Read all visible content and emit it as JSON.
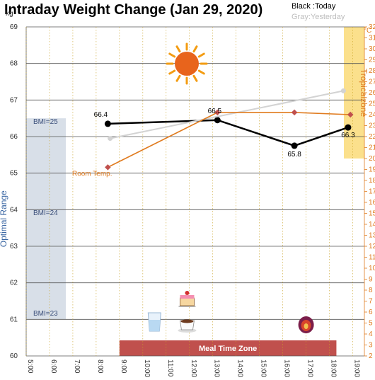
{
  "chart_data": {
    "type": "line",
    "title": "Intraday Weight Change (Jan 29, 2020)",
    "legend": {
      "today": "Black :Today",
      "yesterday": "Gray:Yesterday"
    },
    "y_left": {
      "unit": "kg",
      "range": [
        60,
        69
      ],
      "ticks": [
        "60",
        "61",
        "62",
        "63",
        "64",
        "65",
        "66",
        "67",
        "68",
        "69"
      ]
    },
    "y_right": {
      "unit": "°C",
      "range": [
        2,
        32
      ],
      "ticks": [
        "2",
        "3",
        "4",
        "5",
        "6",
        "7",
        "8",
        "9",
        "10",
        "11",
        "12",
        "13",
        "14",
        "15",
        "16",
        "17",
        "18",
        "19",
        "20",
        "21",
        "22",
        "23",
        "24",
        "25",
        "26",
        "27",
        "28",
        "29",
        "30",
        "31",
        "32"
      ]
    },
    "x": {
      "range": [
        5,
        19.5
      ],
      "tick_values": [
        5,
        6,
        7,
        8,
        9,
        10,
        11,
        12,
        13,
        14,
        15,
        16,
        17,
        18,
        19
      ],
      "tick_labels": [
        "5:00",
        "6:00",
        "7:00",
        "8:00",
        "9:00",
        "10:00",
        "11:00",
        "12:00",
        "13:00",
        "14:00",
        "15:00",
        "16:00",
        "17:00",
        "18:00",
        "19:00"
      ]
    },
    "series": [
      {
        "name": "Today",
        "axis": "left",
        "color": "#000000",
        "x": [
          8.5,
          13.2,
          16.5,
          18.8
        ],
        "y": [
          66.35,
          66.45,
          65.75,
          66.25
        ],
        "labels": [
          "66.4",
          "66.5",
          "65.8",
          "66.3"
        ]
      },
      {
        "name": "Yesterday",
        "axis": "left",
        "color": "#d3d3d3",
        "x": [
          8.6,
          18.6
        ],
        "y": [
          65.95,
          67.25
        ]
      },
      {
        "name": "Room Temp.",
        "axis": "right",
        "color": "#e07b1f",
        "x": [
          8.5,
          13.2,
          16.5,
          18.9
        ],
        "y": [
          19.2,
          24.2,
          24.2,
          24.0
        ]
      }
    ],
    "optimal_range": {
      "label": "Optimal Range",
      "y_range": [
        61,
        66.5
      ],
      "color": "#d8dfe8"
    },
    "bmi_labels": [
      {
        "label": "BMI=25",
        "y": 66.35
      },
      {
        "label": "BMI=24",
        "y": 63.85
      },
      {
        "label": "BMI=23",
        "y": 61.1
      }
    ],
    "tropical_zone": {
      "label": "Tropicalzone",
      "temp_range": [
        20,
        32
      ],
      "color": "#fbe08c"
    },
    "room_temp_label": "Room Temp.",
    "meal_time_zone": {
      "label": "Meal Time Zone",
      "x_range": [
        9,
        18.3
      ],
      "color": "#c0504d"
    },
    "sun_icon": "sun-icon",
    "meal_icons": [
      {
        "name": "water-glass-icon",
        "x": 10.5
      },
      {
        "name": "cake-icon",
        "x": 11.9
      },
      {
        "name": "coffee-cup-icon",
        "x": 11.9
      },
      {
        "name": "fig-fruit-icon",
        "x": 17.0
      }
    ]
  }
}
